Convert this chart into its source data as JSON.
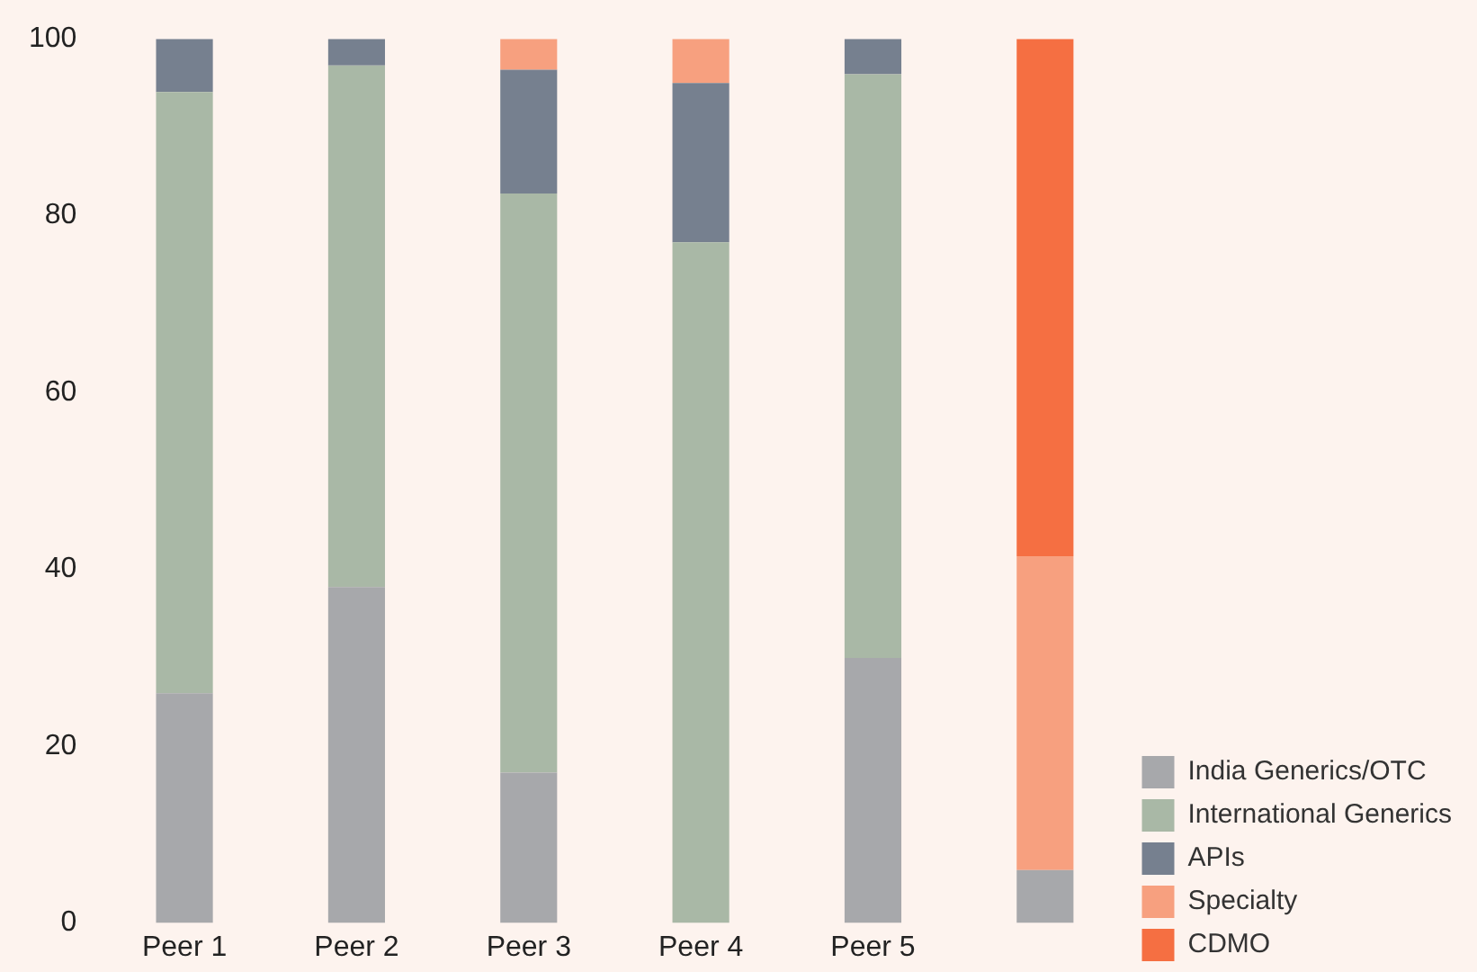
{
  "chart_data": {
    "type": "bar",
    "stacked": true,
    "categories": [
      "Peer 1",
      "Peer 2",
      "Peer 3",
      "Peer 4",
      "Peer 5",
      null
    ],
    "series": [
      {
        "name": "India Generics/OTC",
        "color": "#a7a8ab",
        "values": [
          26,
          38,
          17,
          0,
          30,
          6
        ]
      },
      {
        "name": "International Generics",
        "color": "#a9b8a6",
        "values": [
          68,
          59,
          65.5,
          77,
          66,
          0
        ]
      },
      {
        "name": "APIs",
        "color": "#76808f",
        "values": [
          6,
          3,
          14,
          18,
          4,
          0
        ]
      },
      {
        "name": "Specialty",
        "color": "#f7a07f",
        "values": [
          0,
          0,
          3.5,
          5,
          0,
          35.5
        ]
      },
      {
        "name": "CDMO",
        "color": "#f56f42",
        "values": [
          0,
          0,
          0,
          0,
          0,
          58.5
        ]
      }
    ],
    "ylim": [
      0,
      100
    ],
    "yticks": [
      0,
      20,
      40,
      60,
      80,
      100
    ],
    "grid": false,
    "legend": "right"
  }
}
